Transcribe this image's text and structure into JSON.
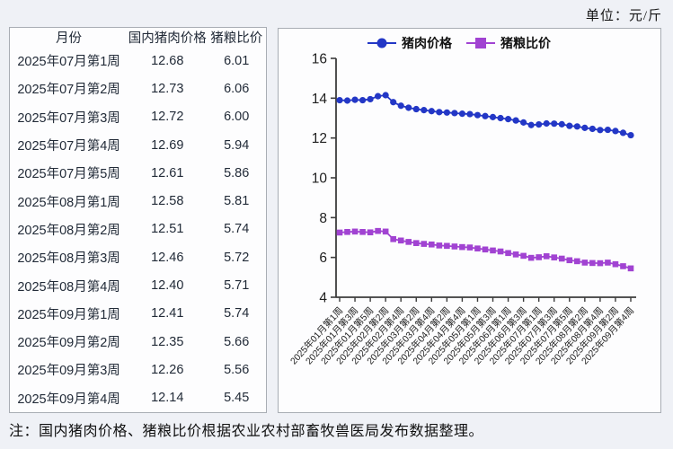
{
  "unit_label": "单位：元/斤",
  "note": "注：国内猪肉价格、猪粮比价根据农业农村部畜牧兽医局发布数据整理。",
  "table": {
    "headers": [
      "月份",
      "国内猪肉价格",
      "猪粮比价"
    ],
    "rows": [
      [
        "2025年07月第1周",
        "12.68",
        "6.01"
      ],
      [
        "2025年07月第2周",
        "12.73",
        "6.06"
      ],
      [
        "2025年07月第3周",
        "12.72",
        "6.00"
      ],
      [
        "2025年07月第4周",
        "12.69",
        "5.94"
      ],
      [
        "2025年07月第5周",
        "12.61",
        "5.86"
      ],
      [
        "2025年08月第1周",
        "12.58",
        "5.81"
      ],
      [
        "2025年08月第2周",
        "12.51",
        "5.74"
      ],
      [
        "2025年08月第3周",
        "12.46",
        "5.72"
      ],
      [
        "2025年08月第4周",
        "12.40",
        "5.71"
      ],
      [
        "2025年09月第1周",
        "12.41",
        "5.74"
      ],
      [
        "2025年09月第2周",
        "12.35",
        "5.66"
      ],
      [
        "2025年09月第3周",
        "12.26",
        "5.56"
      ],
      [
        "2025年09月第4周",
        "12.14",
        "5.45"
      ]
    ]
  },
  "chart_data": {
    "type": "line",
    "title": "",
    "unit": "元/斤",
    "legend_position": "top",
    "grid": false,
    "ylim": [
      4,
      16
    ],
    "yticks": [
      4,
      6,
      8,
      10,
      12,
      14,
      16
    ],
    "x_tick_step": 2,
    "x": [
      "2025年01月第1周",
      "2025年01月第2周",
      "2025年01月第3周",
      "2025年01月第4周",
      "2025年01月第5周",
      "2025年02月第1周",
      "2025年02月第2周",
      "2025年02月第3周",
      "2025年02月第4周",
      "2025年03月第1周",
      "2025年03月第2周",
      "2025年03月第3周",
      "2025年03月第4周",
      "2025年04月第1周",
      "2025年04月第2周",
      "2025年04月第3周",
      "2025年04月第4周",
      "2025年04月第5周",
      "2025年05月第1周",
      "2025年05月第2周",
      "2025年05月第3周",
      "2025年05月第4周",
      "2025年06月第1周",
      "2025年06月第2周",
      "2025年06月第3周",
      "2025年06月第4周",
      "2025年07月第1周",
      "2025年07月第2周",
      "2025年07月第3周",
      "2025年07月第4周",
      "2025年07月第5周",
      "2025年08月第1周",
      "2025年08月第2周",
      "2025年08月第3周",
      "2025年08月第4周",
      "2025年09月第1周",
      "2025年09月第2周",
      "2025年09月第3周",
      "2025年09月第4周"
    ],
    "x_tick_labels_shown": [
      "2025年01月第1周",
      "2025年01月第3周",
      "2025年01月第5周",
      "2025年02月第2周",
      "2025年02月第4周",
      "2025年03月第2周",
      "2025年03月第4周",
      "2025年04月第2周",
      "2025年04月第4周",
      "2025年05月第1周",
      "2025年05月第3周",
      "2025年06月第1周",
      "2025年06月第3周",
      "2025年07月第1周",
      "2025年07月第3周",
      "2025年07月第5周",
      "2025年08月第2周",
      "2025年08月第4周",
      "2025年09月第2周",
      "2025年09月第4周"
    ],
    "series": [
      {
        "name": "猪肉价格",
        "marker": "circle",
        "color": "#2337c6",
        "values": [
          13.9,
          13.88,
          13.92,
          13.9,
          13.95,
          14.1,
          14.15,
          13.8,
          13.62,
          13.52,
          13.45,
          13.4,
          13.35,
          13.3,
          13.28,
          13.25,
          13.22,
          13.2,
          13.15,
          13.1,
          13.05,
          13.0,
          12.95,
          12.88,
          12.78,
          12.65,
          12.68,
          12.73,
          12.72,
          12.69,
          12.61,
          12.58,
          12.51,
          12.46,
          12.4,
          12.41,
          12.35,
          12.26,
          12.14
        ]
      },
      {
        "name": "猪粮比价",
        "marker": "square",
        "color": "#a143d2",
        "values": [
          7.25,
          7.28,
          7.3,
          7.28,
          7.26,
          7.33,
          7.3,
          6.92,
          6.85,
          6.78,
          6.72,
          6.68,
          6.65,
          6.6,
          6.58,
          6.55,
          6.52,
          6.5,
          6.45,
          6.4,
          6.35,
          6.3,
          6.22,
          6.15,
          6.08,
          5.98,
          6.01,
          6.06,
          6.0,
          5.94,
          5.86,
          5.81,
          5.74,
          5.72,
          5.71,
          5.74,
          5.66,
          5.56,
          5.45
        ]
      }
    ],
    "colors": {
      "axis": "#3c3c3c",
      "tick_text": "#1e1e1e",
      "legend_text": "#111111"
    }
  }
}
